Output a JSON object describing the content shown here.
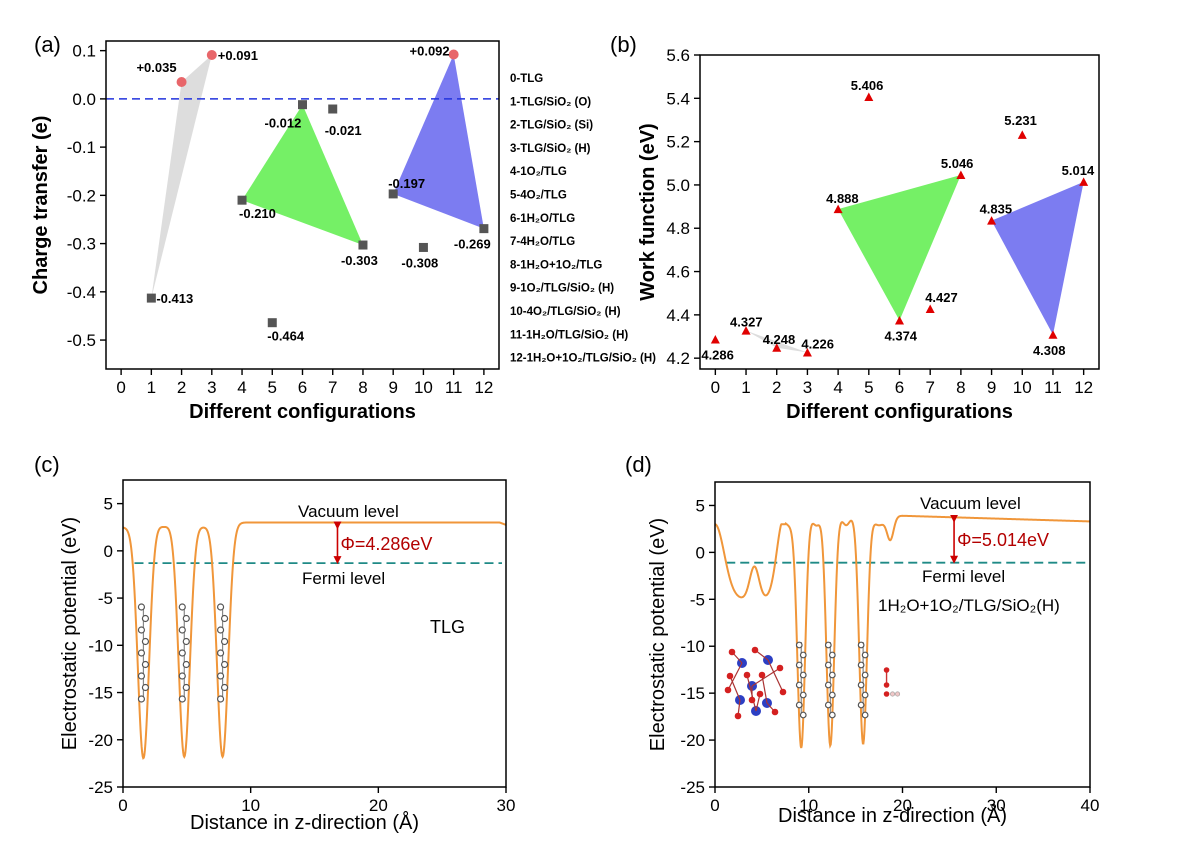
{
  "chart_data": [
    {
      "panel": "(a)",
      "type": "scatter",
      "xlabel": "Different configurations",
      "ylabel": "Charge transfer (e)",
      "xlim": [
        -0.5,
        12.5
      ],
      "ylim": [
        -0.56,
        0.12
      ],
      "xticks": [
        "0",
        "1",
        "2",
        "3",
        "4",
        "5",
        "6",
        "7",
        "8",
        "9",
        "10",
        "11",
        "12"
      ],
      "yticks": [
        "0.1",
        "0.0",
        "-0.1",
        "-0.2",
        "-0.3",
        "-0.4",
        "-0.5"
      ],
      "points": [
        {
          "x": 1,
          "y": -0.413,
          "label": "-0.413",
          "color": "#555555",
          "marker": "square"
        },
        {
          "x": 2,
          "y": 0.035,
          "label": "+0.035",
          "color": "#e8666a",
          "marker": "circle"
        },
        {
          "x": 3,
          "y": 0.091,
          "label": "+0.091",
          "color": "#e8666a",
          "marker": "circle"
        },
        {
          "x": 4,
          "y": -0.21,
          "label": "-0.210",
          "color": "#555555",
          "marker": "square"
        },
        {
          "x": 5,
          "y": -0.464,
          "label": "-0.464",
          "color": "#555555",
          "marker": "square"
        },
        {
          "x": 6,
          "y": -0.012,
          "label": "-0.012",
          "color": "#555555",
          "marker": "square"
        },
        {
          "x": 7,
          "y": -0.021,
          "label": "-0.021",
          "color": "#555555",
          "marker": "square"
        },
        {
          "x": 8,
          "y": -0.303,
          "label": "-0.303",
          "color": "#555555",
          "marker": "square"
        },
        {
          "x": 9,
          "y": -0.197,
          "label": "-0.197",
          "color": "#555555",
          "marker": "square"
        },
        {
          "x": 10,
          "y": -0.308,
          "label": "-0.308",
          "color": "#555555",
          "marker": "square"
        },
        {
          "x": 11,
          "y": 0.092,
          "label": "+0.092",
          "color": "#e8666a",
          "marker": "circle"
        },
        {
          "x": 12,
          "y": -0.269,
          "label": "-0.269",
          "color": "#555555",
          "marker": "square"
        }
      ],
      "reference_line": {
        "y": 0.0,
        "color": "#2233dd",
        "style": "dashed"
      },
      "triangles": [
        {
          "vertices": [
            [
              1,
              -0.413
            ],
            [
              2,
              0.035
            ],
            [
              3,
              0.091
            ]
          ],
          "color": "#d9d9d9"
        },
        {
          "vertices": [
            [
              4,
              -0.21
            ],
            [
              6,
              -0.012
            ],
            [
              8,
              -0.303
            ]
          ],
          "color": "#66ee55"
        },
        {
          "vertices": [
            [
              9,
              -0.197
            ],
            [
              11,
              0.092
            ],
            [
              12,
              -0.269
            ]
          ],
          "color": "#6e6ef0"
        }
      ],
      "legend_entries": [
        "0-TLG",
        "1-TLG/SiO₂ (O)",
        "2-TLG/SiO₂ (Si)",
        "3-TLG/SiO₂ (H)",
        "4-1O₂/TLG",
        "5-4O₂/TLG",
        "6-1H₂O/TLG",
        "7-4H₂O/TLG",
        "8-1H₂O+1O₂/TLG",
        "9-1O₂/TLG/SiO₂ (H)",
        "10-4O₂/TLG/SiO₂ (H)",
        "11-1H₂O/TLG/SiO₂ (H)",
        "12-1H₂O+1O₂/TLG/SiO₂ (H)"
      ]
    },
    {
      "panel": "(b)",
      "type": "scatter",
      "xlabel": "Different configurations",
      "ylabel": "Work function (eV)",
      "xlim": [
        -0.5,
        12.5
      ],
      "ylim": [
        4.15,
        5.6
      ],
      "xticks": [
        "0",
        "1",
        "2",
        "3",
        "4",
        "5",
        "6",
        "7",
        "8",
        "9",
        "10",
        "11",
        "12"
      ],
      "yticks": [
        "4.2",
        "4.4",
        "4.6",
        "4.8",
        "5.0",
        "5.2",
        "5.4",
        "5.6"
      ],
      "points": [
        {
          "x": 0,
          "y": 4.286,
          "label": "4.286"
        },
        {
          "x": 1,
          "y": 4.327,
          "label": "4.327"
        },
        {
          "x": 2,
          "y": 4.248,
          "label": "4.248"
        },
        {
          "x": 3,
          "y": 4.226,
          "label": "4.226"
        },
        {
          "x": 4,
          "y": 4.888,
          "label": "4.888"
        },
        {
          "x": 5,
          "y": 5.406,
          "label": "5.406"
        },
        {
          "x": 6,
          "y": 4.374,
          "label": "4.374"
        },
        {
          "x": 7,
          "y": 4.427,
          "label": "4.427"
        },
        {
          "x": 8,
          "y": 5.046,
          "label": "5.046"
        },
        {
          "x": 9,
          "y": 4.835,
          "label": "4.835"
        },
        {
          "x": 10,
          "y": 5.231,
          "label": "5.231"
        },
        {
          "x": 11,
          "y": 4.308,
          "label": "4.308"
        },
        {
          "x": 12,
          "y": 5.014,
          "label": "5.014"
        }
      ],
      "marker_color": "#e00000",
      "triangles": [
        {
          "vertices": [
            [
              1,
              4.327
            ],
            [
              2,
              4.248
            ],
            [
              3,
              4.226
            ]
          ],
          "color": "#d9d9d9"
        },
        {
          "vertices": [
            [
              4,
              4.888
            ],
            [
              6,
              4.374
            ],
            [
              8,
              5.046
            ]
          ],
          "color": "#66ee55"
        },
        {
          "vertices": [
            [
              9,
              4.835
            ],
            [
              11,
              4.308
            ],
            [
              12,
              5.014
            ]
          ],
          "color": "#6e6ef0"
        }
      ]
    },
    {
      "panel": "(c)",
      "type": "line",
      "xlabel": "Distance in z-direction (Å)",
      "ylabel": "Electrostatic potential (eV)",
      "xlim": [
        0,
        30
      ],
      "ylim": [
        -25,
        7.5
      ],
      "xticks": [
        "0",
        "10",
        "20",
        "30"
      ],
      "yticks": [
        "5",
        "0",
        "-5",
        "-10",
        "-15",
        "-20",
        "-25"
      ],
      "vacuum_level": 3.0,
      "fermi_level": -1.3,
      "wells": [
        {
          "center": 1.6,
          "min": -22.3
        },
        {
          "center": 4.8,
          "min": -22.3
        },
        {
          "center": 7.8,
          "min": -22.3
        }
      ],
      "vacuum_label": "Vacuum level",
      "fermi_label": "Fermi level",
      "phi_label": "Φ=4.286eV",
      "system_label": "TLG",
      "line_color": "#f0963a",
      "fermi_color": "#1f8a86"
    },
    {
      "panel": "(d)",
      "type": "line",
      "xlabel": "Distance in z-direction (Å)",
      "ylabel": "Electrostatic potential (eV)",
      "xlim": [
        0,
        40
      ],
      "ylim": [
        -25,
        7.5
      ],
      "xticks": [
        "0",
        "10",
        "20",
        "30",
        "40"
      ],
      "yticks": [
        "5",
        "0",
        "-5",
        "-10",
        "-15",
        "-20",
        "-25"
      ],
      "vacuum_level": 3.9,
      "fermi_level": -1.1,
      "wells": [
        {
          "center": 9.2,
          "min": -22.0
        },
        {
          "center": 12.3,
          "min": -22.0
        },
        {
          "center": 15.8,
          "min": -21.8
        }
      ],
      "vacuum_label": "Vacuum level",
      "fermi_label": "Fermi level",
      "phi_label": "Φ=5.014eV",
      "system_label": "1H₂O+1O₂/TLG/SiO₂(H)",
      "line_color": "#f0963a",
      "fermi_color": "#1f8a86"
    }
  ]
}
